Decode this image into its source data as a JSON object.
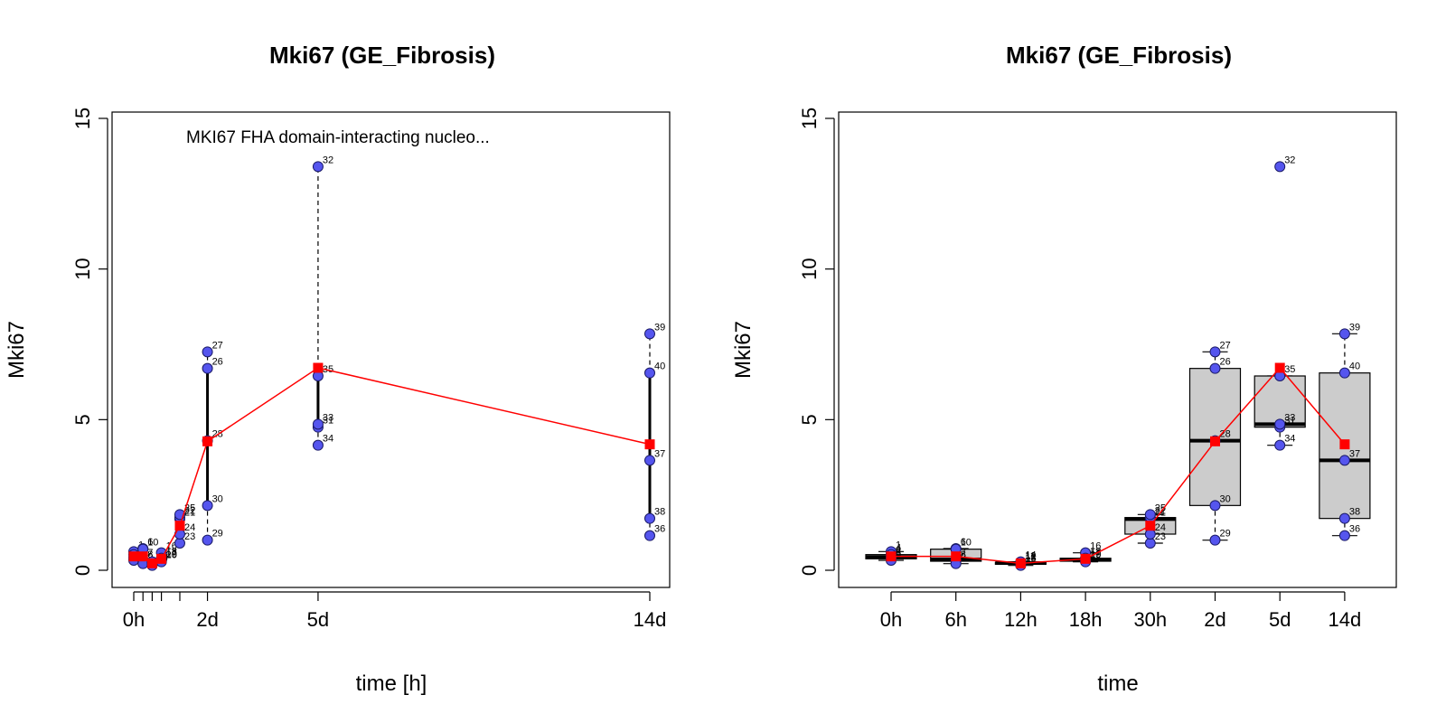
{
  "colors": {
    "point_fill": "#5555ee",
    "point_stroke": "#1a1a66",
    "mean_line": "#ff0000",
    "box_fill": "#cccccc",
    "axis": "#000000"
  },
  "chart_data": [
    {
      "type": "scatter",
      "title": "Mki67 (GE_Fibrosis)",
      "annotation": "MKI67 FHA domain-interacting nucleo...",
      "xlabel": "time [h]",
      "ylabel": "Mki67",
      "ylim": [
        0,
        15
      ],
      "yticks": [
        "0",
        "5",
        "10",
        "15"
      ],
      "xticks": [
        {
          "label": "0h",
          "x": 0
        },
        {
          "label": "",
          "x": 6
        },
        {
          "label": "",
          "x": 12
        },
        {
          "label": "",
          "x": 18
        },
        {
          "label": "",
          "x": 30
        },
        {
          "label": "2d",
          "x": 48
        },
        {
          "label": "5d",
          "x": 120
        },
        {
          "label": "14d",
          "x": 336
        }
      ],
      "points": [
        {
          "id": "1",
          "x": 0,
          "y": 0.62
        },
        {
          "id": "2",
          "x": 0,
          "y": 0.44
        },
        {
          "id": "3",
          "x": 0,
          "y": 0.38
        },
        {
          "id": "4",
          "x": 0,
          "y": 0.52
        },
        {
          "id": "5",
          "x": 0,
          "y": 0.33
        },
        {
          "id": "6",
          "x": 6,
          "y": 0.72
        },
        {
          "id": "7",
          "x": 6,
          "y": 0.36
        },
        {
          "id": "8",
          "x": 6,
          "y": 0.3
        },
        {
          "id": "9",
          "x": 6,
          "y": 0.22
        },
        {
          "id": "10",
          "x": 6,
          "y": 0.7
        },
        {
          "id": "11",
          "x": 12,
          "y": 0.26
        },
        {
          "id": "12",
          "x": 12,
          "y": 0.24
        },
        {
          "id": "13",
          "x": 12,
          "y": 0.2
        },
        {
          "id": "14",
          "x": 12,
          "y": 0.28
        },
        {
          "id": "15",
          "x": 12,
          "y": 0.16
        },
        {
          "id": "16",
          "x": 18,
          "y": 0.58
        },
        {
          "id": "17",
          "x": 18,
          "y": 0.35
        },
        {
          "id": "18",
          "x": 18,
          "y": 0.4
        },
        {
          "id": "19",
          "x": 18,
          "y": 0.3
        },
        {
          "id": "20",
          "x": 18,
          "y": 0.28
        },
        {
          "id": "21",
          "x": 30,
          "y": 1.7
        },
        {
          "id": "22",
          "x": 30,
          "y": 1.75
        },
        {
          "id": "23",
          "x": 30,
          "y": 0.9
        },
        {
          "id": "24",
          "x": 30,
          "y": 1.2
        },
        {
          "id": "25",
          "x": 30,
          "y": 1.85
        },
        {
          "id": "26",
          "x": 48,
          "y": 6.7
        },
        {
          "id": "27",
          "x": 48,
          "y": 7.25
        },
        {
          "id": "28",
          "x": 48,
          "y": 4.3
        },
        {
          "id": "29",
          "x": 48,
          "y": 1.0
        },
        {
          "id": "30",
          "x": 48,
          "y": 2.15
        },
        {
          "id": "31",
          "x": 120,
          "y": 4.75
        },
        {
          "id": "32",
          "x": 120,
          "y": 13.4
        },
        {
          "id": "33",
          "x": 120,
          "y": 4.85
        },
        {
          "id": "34",
          "x": 120,
          "y": 4.15
        },
        {
          "id": "35",
          "x": 120,
          "y": 6.45
        },
        {
          "id": "36",
          "x": 336,
          "y": 1.15
        },
        {
          "id": "37",
          "x": 336,
          "y": 3.65
        },
        {
          "id": "38",
          "x": 336,
          "y": 1.72
        },
        {
          "id": "39",
          "x": 336,
          "y": 7.85
        },
        {
          "id": "40",
          "x": 336,
          "y": 6.55
        }
      ],
      "mean_line": [
        {
          "x": 0,
          "y": 0.46
        },
        {
          "x": 6,
          "y": 0.46
        },
        {
          "x": 12,
          "y": 0.23
        },
        {
          "x": 18,
          "y": 0.38
        },
        {
          "x": 30,
          "y": 1.48
        },
        {
          "x": 48,
          "y": 4.28
        },
        {
          "x": 120,
          "y": 6.72
        },
        {
          "x": 336,
          "y": 4.18
        }
      ]
    },
    {
      "type": "box",
      "title": "Mki67 (GE_Fibrosis)",
      "xlabel": "time",
      "ylabel": "Mki67",
      "ylim": [
        0,
        15
      ],
      "yticks": [
        "0",
        "5",
        "10",
        "15"
      ],
      "categories": [
        "0h",
        "6h",
        "12h",
        "18h",
        "30h",
        "2d",
        "5d",
        "14d"
      ],
      "boxes": [
        {
          "min": 0.33,
          "q1": 0.38,
          "median": 0.44,
          "q3": 0.52,
          "max": 0.62
        },
        {
          "min": 0.22,
          "q1": 0.3,
          "median": 0.36,
          "q3": 0.7,
          "max": 0.72
        },
        {
          "min": 0.16,
          "q1": 0.2,
          "median": 0.24,
          "q3": 0.26,
          "max": 0.28
        },
        {
          "min": 0.28,
          "q1": 0.3,
          "median": 0.35,
          "q3": 0.4,
          "max": 0.58
        },
        {
          "min": 0.9,
          "q1": 1.2,
          "median": 1.7,
          "q3": 1.75,
          "max": 1.85
        },
        {
          "min": 1.0,
          "q1": 2.15,
          "median": 4.3,
          "q3": 6.7,
          "max": 7.25
        },
        {
          "min": 4.15,
          "q1": 4.75,
          "median": 4.85,
          "q3": 6.45,
          "max": 6.45
        },
        {
          "min": 1.15,
          "q1": 1.72,
          "median": 3.65,
          "q3": 6.55,
          "max": 7.85
        }
      ],
      "points_from_panel": 0,
      "mean_line": [
        0.46,
        0.46,
        0.23,
        0.38,
        1.48,
        4.28,
        6.72,
        4.18
      ]
    }
  ]
}
